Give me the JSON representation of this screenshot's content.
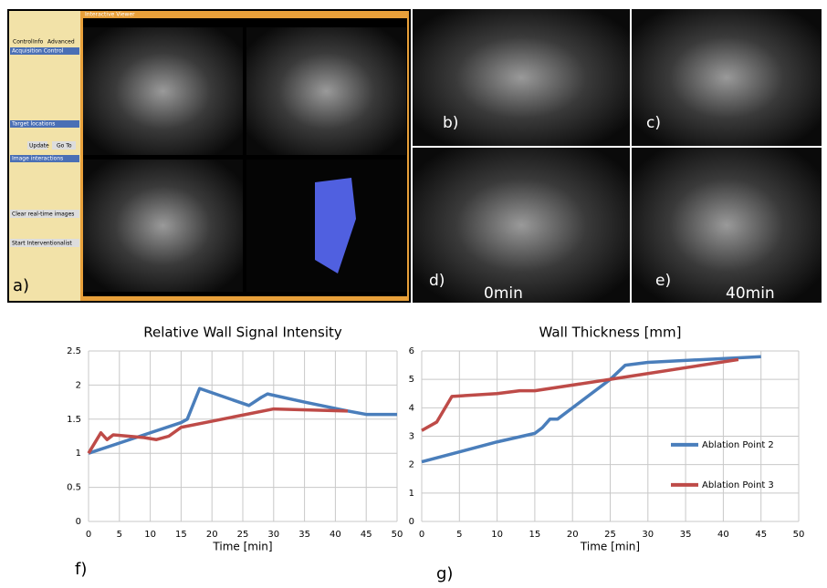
{
  "viewer": {
    "title": "Interactive Viewer",
    "tabs": [
      "Control",
      "Info",
      "Advanced"
    ],
    "sections": [
      "Acquisition Control",
      "Target locations",
      "Image interactions"
    ],
    "buttons": [
      "Update",
      "Go To",
      "Clear real-time images",
      "Start Interventionalist"
    ]
  },
  "panels": {
    "labels": [
      "a)",
      "b)",
      "c)",
      "d)",
      "e)"
    ],
    "captions": [
      "0min",
      "40min"
    ]
  },
  "chart_labels": [
    "f)",
    "g)"
  ],
  "chart_data": [
    {
      "type": "line",
      "title": "Relative Wall Signal Intensity",
      "x_label": "Time [min]",
      "xlim": [
        0,
        50
      ],
      "xticks": [
        0,
        5,
        10,
        15,
        20,
        25,
        30,
        35,
        40,
        45,
        50
      ],
      "ylim": [
        0,
        2.5
      ],
      "yticks": [
        0,
        0.5,
        1,
        1.5,
        2,
        2.5
      ],
      "grid": true,
      "series": [
        {
          "color": "#4a7ebb",
          "x": [
            0,
            5,
            10,
            15,
            16,
            18,
            26,
            28,
            29,
            35,
            42,
            45,
            50
          ],
          "values": [
            1,
            1.15,
            1.3,
            1.45,
            1.5,
            1.95,
            1.7,
            1.82,
            1.87,
            1.75,
            1.62,
            1.57,
            1.57
          ]
        },
        {
          "color": "#be4b48",
          "x": [
            0,
            2,
            3,
            4,
            9,
            11,
            13,
            15,
            20,
            30,
            42
          ],
          "values": [
            1,
            1.3,
            1.2,
            1.27,
            1.23,
            1.2,
            1.25,
            1.38,
            1.47,
            1.65,
            1.62
          ]
        }
      ]
    },
    {
      "type": "line",
      "title": "Wall Thickness [mm]",
      "x_label": "Time [min]",
      "xlim": [
        0,
        50
      ],
      "xticks": [
        0,
        5,
        10,
        15,
        20,
        25,
        30,
        35,
        40,
        45,
        50
      ],
      "ylim": [
        0,
        6
      ],
      "yticks": [
        0,
        1,
        2,
        3,
        4,
        5,
        6
      ],
      "grid": true,
      "legend": "right",
      "series": [
        {
          "name": "Ablation Point 2",
          "color": "#4a7ebb",
          "x": [
            0,
            10,
            15,
            16,
            17,
            18,
            25,
            27,
            30,
            45
          ],
          "values": [
            2.1,
            2.8,
            3.1,
            3.3,
            3.6,
            3.6,
            5,
            5.5,
            5.6,
            5.8
          ]
        },
        {
          "name": "Ablation Point 3",
          "color": "#be4b48",
          "x": [
            0,
            2,
            4,
            10,
            13,
            15,
            25,
            42
          ],
          "values": [
            3.2,
            3.5,
            4.4,
            4.5,
            4.6,
            4.6,
            5,
            5.7
          ]
        }
      ]
    }
  ]
}
